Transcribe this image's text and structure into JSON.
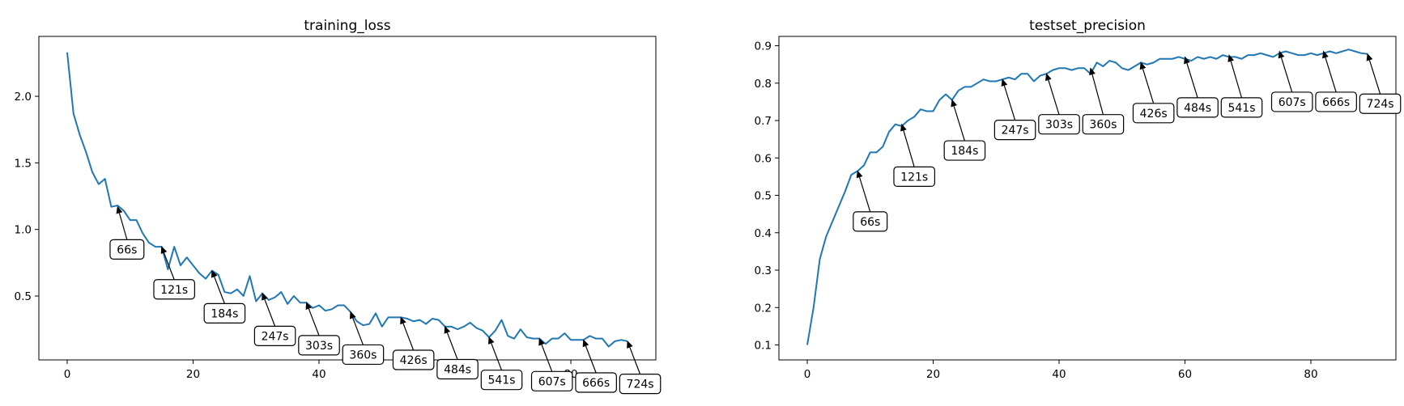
{
  "chart_data": [
    {
      "type": "line",
      "title": "training_loss",
      "xlabel": "",
      "ylabel": "",
      "xlim": [
        -4.5,
        93.5
      ],
      "ylim": [
        0.02,
        2.45
      ],
      "xticks": [
        0,
        20,
        40,
        60,
        80
      ],
      "yticks": [
        0.5,
        1.0,
        1.5,
        2.0
      ],
      "ytick_labels": [
        "0.5",
        "1.0",
        "1.5",
        "2.0"
      ],
      "grid": false,
      "color": "#1f77b4",
      "series": [
        {
          "values": [
            2.33,
            1.87,
            1.71,
            1.58,
            1.43,
            1.34,
            1.38,
            1.17,
            1.18,
            1.14,
            1.07,
            1.07,
            0.97,
            0.9,
            0.87,
            0.87,
            0.7,
            0.87,
            0.73,
            0.79,
            0.73,
            0.67,
            0.63,
            0.69,
            0.66,
            0.53,
            0.52,
            0.55,
            0.5,
            0.65,
            0.46,
            0.52,
            0.47,
            0.49,
            0.53,
            0.44,
            0.5,
            0.45,
            0.45,
            0.41,
            0.43,
            0.39,
            0.4,
            0.43,
            0.43,
            0.38,
            0.31,
            0.28,
            0.29,
            0.37,
            0.27,
            0.34,
            0.34,
            0.34,
            0.33,
            0.31,
            0.32,
            0.29,
            0.33,
            0.32,
            0.27,
            0.27,
            0.25,
            0.27,
            0.3,
            0.26,
            0.24,
            0.19,
            0.24,
            0.32,
            0.2,
            0.18,
            0.25,
            0.19,
            0.18,
            0.18,
            0.14,
            0.18,
            0.18,
            0.22,
            0.17,
            0.17,
            0.17,
            0.2,
            0.18,
            0.18,
            0.12,
            0.16,
            0.17,
            0.16
          ]
        }
      ],
      "annotations": [
        {
          "text": "66s",
          "x": 8,
          "y": 1.17,
          "tx": 9.5,
          "ty": 0.85
        },
        {
          "text": "121s",
          "x": 15,
          "y": 0.87,
          "tx": 17,
          "ty": 0.55
        },
        {
          "text": "184s",
          "x": 23,
          "y": 0.69,
          "tx": 25,
          "ty": 0.37
        },
        {
          "text": "247s",
          "x": 31,
          "y": 0.52,
          "tx": 33,
          "ty": 0.2
        },
        {
          "text": "303s",
          "x": 38,
          "y": 0.45,
          "tx": 40,
          "ty": 0.13
        },
        {
          "text": "360s",
          "x": 45,
          "y": 0.38,
          "tx": 47,
          "ty": 0.06
        },
        {
          "text": "426s",
          "x": 53,
          "y": 0.34,
          "tx": 55,
          "ty": 0.02
        },
        {
          "text": "484s",
          "x": 60,
          "y": 0.27,
          "tx": 62,
          "ty": -0.05
        },
        {
          "text": "541s",
          "x": 67,
          "y": 0.19,
          "tx": 69,
          "ty": -0.13
        },
        {
          "text": "607s",
          "x": 75,
          "y": 0.18,
          "tx": 77,
          "ty": -0.14
        },
        {
          "text": "666s",
          "x": 82,
          "y": 0.17,
          "tx": 84,
          "ty": -0.15
        },
        {
          "text": "724s",
          "x": 89,
          "y": 0.16,
          "tx": 91,
          "ty": -0.16
        }
      ]
    },
    {
      "type": "line",
      "title": "testset_precision",
      "xlabel": "",
      "ylabel": "",
      "xlim": [
        -4.5,
        93.5
      ],
      "ylim": [
        0.06,
        0.925
      ],
      "xticks": [
        0,
        20,
        40,
        60,
        80
      ],
      "yticks": [
        0.1,
        0.2,
        0.3,
        0.4,
        0.5,
        0.6,
        0.7,
        0.8,
        0.9
      ],
      "ytick_labels": [
        "0.1",
        "0.2",
        "0.3",
        "0.4",
        "0.5",
        "0.6",
        "0.7",
        "0.8",
        "0.9"
      ],
      "grid": false,
      "color": "#1f77b4",
      "series": [
        {
          "values": [
            0.1,
            0.2,
            0.33,
            0.39,
            0.43,
            0.47,
            0.51,
            0.555,
            0.565,
            0.58,
            0.615,
            0.615,
            0.63,
            0.67,
            0.69,
            0.685,
            0.7,
            0.71,
            0.73,
            0.725,
            0.725,
            0.755,
            0.77,
            0.755,
            0.78,
            0.79,
            0.79,
            0.8,
            0.81,
            0.805,
            0.805,
            0.81,
            0.815,
            0.81,
            0.825,
            0.825,
            0.805,
            0.82,
            0.825,
            0.835,
            0.84,
            0.84,
            0.835,
            0.84,
            0.84,
            0.825,
            0.855,
            0.845,
            0.86,
            0.855,
            0.84,
            0.835,
            0.845,
            0.855,
            0.85,
            0.855,
            0.865,
            0.865,
            0.865,
            0.87,
            0.865,
            0.86,
            0.87,
            0.865,
            0.87,
            0.865,
            0.875,
            0.87,
            0.87,
            0.865,
            0.875,
            0.875,
            0.88,
            0.875,
            0.87,
            0.88,
            0.885,
            0.88,
            0.875,
            0.875,
            0.88,
            0.875,
            0.88,
            0.885,
            0.88,
            0.885,
            0.89,
            0.885,
            0.88,
            0.878
          ]
        }
      ],
      "annotations": [
        {
          "text": "66s",
          "x": 8,
          "y": 0.565,
          "tx": 10,
          "ty": 0.43
        },
        {
          "text": "121s",
          "x": 15,
          "y": 0.69,
          "tx": 17,
          "ty": 0.55
        },
        {
          "text": "184s",
          "x": 23,
          "y": 0.755,
          "tx": 25,
          "ty": 0.62
        },
        {
          "text": "247s",
          "x": 31,
          "y": 0.81,
          "tx": 33,
          "ty": 0.675
        },
        {
          "text": "303s",
          "x": 38,
          "y": 0.825,
          "tx": 40,
          "ty": 0.69
        },
        {
          "text": "360s",
          "x": 45,
          "y": 0.84,
          "tx": 47,
          "ty": 0.69
        },
        {
          "text": "426s",
          "x": 53,
          "y": 0.855,
          "tx": 55,
          "ty": 0.72
        },
        {
          "text": "484s",
          "x": 60,
          "y": 0.87,
          "tx": 62,
          "ty": 0.735
        },
        {
          "text": "541s",
          "x": 67,
          "y": 0.875,
          "tx": 69,
          "ty": 0.735
        },
        {
          "text": "607s",
          "x": 75,
          "y": 0.885,
          "tx": 77,
          "ty": 0.75
        },
        {
          "text": "666s",
          "x": 82,
          "y": 0.885,
          "tx": 84,
          "ty": 0.75
        },
        {
          "text": "724s",
          "x": 89,
          "y": 0.878,
          "tx": 91,
          "ty": 0.745
        }
      ]
    }
  ]
}
